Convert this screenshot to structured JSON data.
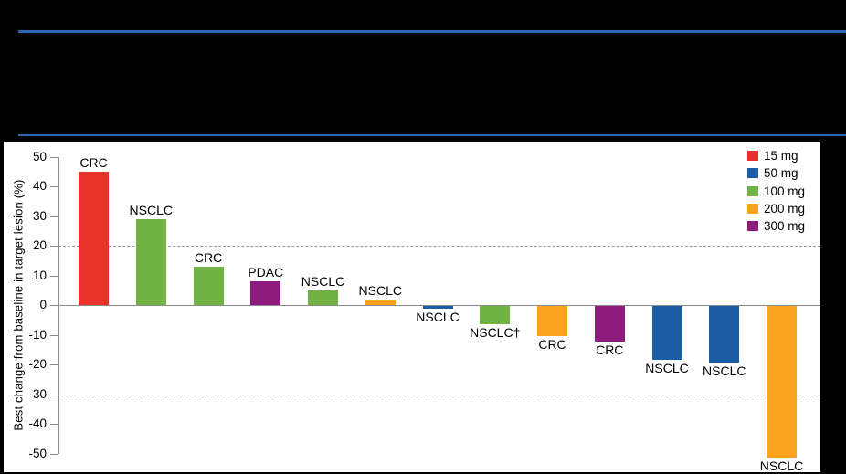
{
  "header": {
    "rule_color": "#2A67B1",
    "background": "#000000"
  },
  "chart_data": {
    "type": "bar",
    "subtype": "waterfall",
    "title": "",
    "xlabel": "",
    "ylabel": "Best change from baseline in target lesion (%)",
    "ylim": [
      -50,
      50
    ],
    "yticks": [
      50,
      40,
      30,
      20,
      10,
      0,
      -10,
      -20,
      -30,
      -40,
      -50
    ],
    "dashed_gridlines": [
      20,
      -30
    ],
    "grid": "dashed horizontal reference lines at +20 and -30 only; solid baseline at 0",
    "legend": {
      "position": "top-right",
      "entries": [
        {
          "label": "15 mg",
          "color": "#E8332A"
        },
        {
          "label": "50 mg",
          "color": "#1A5DA6"
        },
        {
          "label": "100 mg",
          "color": "#70B244"
        },
        {
          "label": "200 mg",
          "color": "#FAA21E"
        },
        {
          "label": "300 mg",
          "color": "#8E1C7F"
        }
      ]
    },
    "bars": [
      {
        "label": "CRC",
        "dose": "15 mg",
        "value": 45
      },
      {
        "label": "NSCLC",
        "dose": "100 mg",
        "value": 29
      },
      {
        "label": "CRC",
        "dose": "100 mg",
        "value": 13
      },
      {
        "label": "PDAC",
        "dose": "300 mg",
        "value": 8
      },
      {
        "label": "NSCLC",
        "dose": "100 mg",
        "value": 5
      },
      {
        "label": "NSCLC",
        "dose": "200 mg",
        "value": 2
      },
      {
        "label": "NSCLC",
        "dose": "50 mg",
        "value": -1
      },
      {
        "label": "NSCLC†",
        "dose": "100 mg",
        "value": -6
      },
      {
        "label": "CRC",
        "dose": "200 mg",
        "value": -10
      },
      {
        "label": "CRC",
        "dose": "300 mg",
        "value": -12
      },
      {
        "label": "NSCLC",
        "dose": "50 mg",
        "value": -18
      },
      {
        "label": "NSCLC",
        "dose": "50 mg",
        "value": -19
      },
      {
        "label": "NSCLC",
        "dose": "200 mg",
        "value": -51
      }
    ]
  }
}
